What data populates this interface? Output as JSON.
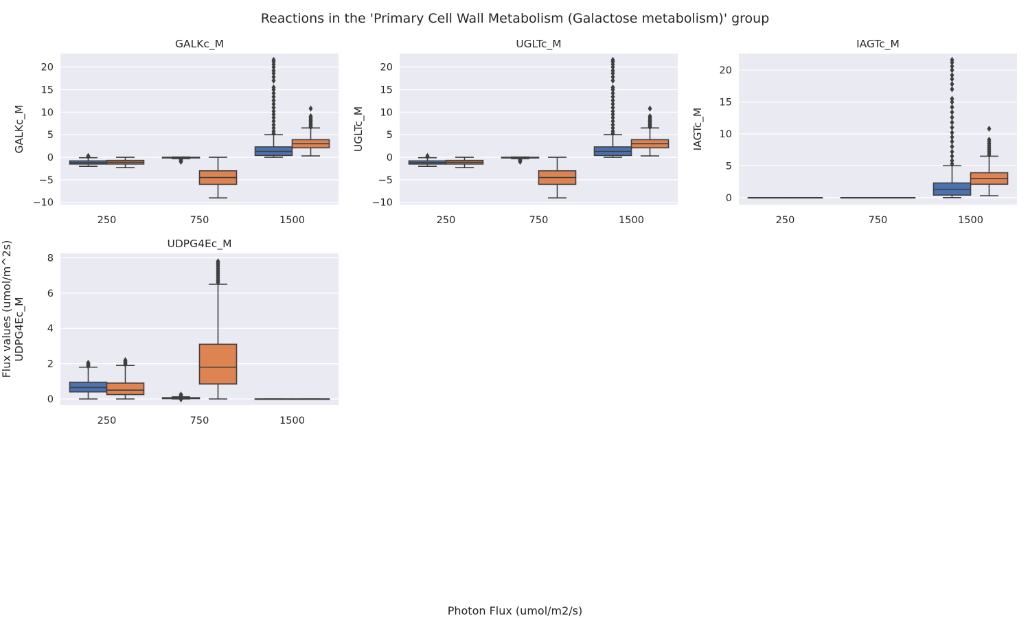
{
  "figure": {
    "suptitle": "Reactions in the 'Primary Cell Wall Metabolism (Galactose metabolism)' group",
    "shared_xlabel": "Photon Flux (umol/m2/s)",
    "shared_ylabel": "Flux values (umol/m^2s)"
  },
  "colors": {
    "plot_background": "#eaeaf2",
    "grid": "#ffffff",
    "series": [
      "#4c72b0",
      "#dd8452"
    ],
    "line": "#3f3f3f"
  },
  "chart_data": [
    {
      "type": "box",
      "title": "GALKc_M",
      "ylabel": "GALKc_M",
      "categories": [
        "250",
        "750",
        "1500"
      ],
      "ylim": [
        -10.5,
        23
      ],
      "yticks": [
        -10,
        -5,
        0,
        5,
        10,
        15,
        20
      ],
      "grid": true,
      "series": [
        {
          "boxes": [
            {
              "whislo": -2.0,
              "q1": -1.5,
              "med": -1.2,
              "q3": -0.8,
              "whishi": -0.1,
              "fliers": [
                0.1,
                0.2,
                0.3
              ]
            },
            {
              "whislo": -0.3,
              "q1": -0.15,
              "med": -0.1,
              "q3": 0.0,
              "whishi": 0.05,
              "fliers": [
                -0.5,
                -0.7,
                -0.9,
                -1.0
              ]
            },
            {
              "whislo": 0.0,
              "q1": 0.4,
              "med": 1.3,
              "q3": 2.3,
              "whishi": 5.0,
              "fliers": [
                5.3,
                5.8,
                6.5,
                7.2,
                8.0,
                8.8,
                9.5,
                10.2,
                11.0,
                11.8,
                12.6,
                13.4,
                14.2,
                15.0,
                15.5,
                17.0,
                17.8,
                18.6,
                19.2,
                20.0,
                20.6,
                21.2,
                21.6
              ]
            }
          ]
        },
        {
          "boxes": [
            {
              "whislo": -2.3,
              "q1": -1.5,
              "med": -1.1,
              "q3": -0.7,
              "whishi": 0.0,
              "fliers": []
            },
            {
              "whislo": -9.0,
              "q1": -6.0,
              "med": -4.5,
              "q3": -3.0,
              "whishi": 0.0,
              "fliers": []
            },
            {
              "whislo": 0.3,
              "q1": 2.1,
              "med": 3.0,
              "q3": 3.9,
              "whishi": 6.5,
              "fliers": [
                6.7,
                7.0,
                7.3,
                7.6,
                7.9,
                8.2,
                8.5,
                8.8,
                9.1,
                10.8
              ]
            }
          ]
        }
      ]
    },
    {
      "type": "box",
      "title": "UGLTc_M",
      "ylabel": "UGLTc_M",
      "categories": [
        "250",
        "750",
        "1500"
      ],
      "ylim": [
        -10.5,
        23
      ],
      "yticks": [
        -10,
        -5,
        0,
        5,
        10,
        15,
        20
      ],
      "grid": true,
      "series": [
        {
          "boxes": [
            {
              "whislo": -2.0,
              "q1": -1.5,
              "med": -1.2,
              "q3": -0.8,
              "whishi": -0.1,
              "fliers": [
                0.1,
                0.2,
                0.3
              ]
            },
            {
              "whislo": -0.3,
              "q1": -0.15,
              "med": -0.1,
              "q3": 0.0,
              "whishi": 0.05,
              "fliers": [
                -0.5,
                -0.7,
                -0.9,
                -1.0
              ]
            },
            {
              "whislo": 0.0,
              "q1": 0.4,
              "med": 1.3,
              "q3": 2.3,
              "whishi": 5.0,
              "fliers": [
                5.3,
                5.8,
                6.5,
                7.2,
                8.0,
                8.8,
                9.5,
                10.2,
                11.0,
                11.8,
                12.6,
                13.4,
                14.2,
                15.0,
                15.5,
                17.0,
                17.8,
                18.6,
                19.2,
                20.0,
                20.6,
                21.2,
                21.6
              ]
            }
          ]
        },
        {
          "boxes": [
            {
              "whislo": -2.3,
              "q1": -1.5,
              "med": -1.1,
              "q3": -0.7,
              "whishi": 0.0,
              "fliers": []
            },
            {
              "whislo": -9.0,
              "q1": -6.0,
              "med": -4.5,
              "q3": -3.0,
              "whishi": 0.0,
              "fliers": []
            },
            {
              "whislo": 0.3,
              "q1": 2.1,
              "med": 3.0,
              "q3": 3.9,
              "whishi": 6.5,
              "fliers": [
                6.7,
                7.0,
                7.3,
                7.6,
                7.9,
                8.2,
                8.5,
                8.8,
                9.1,
                10.8
              ]
            }
          ]
        }
      ]
    },
    {
      "type": "box",
      "title": "IAGTc_M",
      "ylabel": "IAGTc_M",
      "categories": [
        "250",
        "750",
        "1500"
      ],
      "ylim": [
        -1.1,
        22.6
      ],
      "yticks": [
        0,
        5,
        10,
        15,
        20
      ],
      "grid": true,
      "series": [
        {
          "boxes": [
            {
              "whislo": 0.0,
              "q1": 0.0,
              "med": 0.0,
              "q3": 0.0,
              "whishi": 0.0,
              "fliers": []
            },
            {
              "whislo": 0.0,
              "q1": 0.0,
              "med": 0.0,
              "q3": 0.0,
              "whishi": 0.0,
              "fliers": []
            },
            {
              "whislo": 0.0,
              "q1": 0.4,
              "med": 1.3,
              "q3": 2.3,
              "whishi": 5.0,
              "fliers": [
                5.3,
                5.8,
                6.5,
                7.2,
                8.0,
                8.8,
                9.5,
                10.2,
                11.0,
                11.8,
                12.6,
                13.4,
                14.2,
                15.0,
                15.5,
                17.0,
                17.8,
                18.6,
                19.2,
                20.0,
                20.6,
                21.2,
                21.6
              ]
            }
          ]
        },
        {
          "boxes": [
            {
              "whislo": 0.0,
              "q1": 0.0,
              "med": 0.0,
              "q3": 0.0,
              "whishi": 0.0,
              "fliers": []
            },
            {
              "whislo": 0.0,
              "q1": 0.0,
              "med": 0.0,
              "q3": 0.0,
              "whishi": 0.0,
              "fliers": []
            },
            {
              "whislo": 0.3,
              "q1": 2.1,
              "med": 3.0,
              "q3": 3.9,
              "whishi": 6.5,
              "fliers": [
                6.7,
                7.0,
                7.3,
                7.6,
                7.9,
                8.2,
                8.5,
                8.8,
                9.1,
                10.8
              ]
            }
          ]
        }
      ]
    },
    {
      "type": "box",
      "title": "UDPG4Ec_M",
      "ylabel": "UDPG4Ec_M",
      "categories": [
        "250",
        "750",
        "1500"
      ],
      "ylim": [
        -0.35,
        8.25
      ],
      "yticks": [
        0,
        2,
        4,
        6,
        8
      ],
      "grid": true,
      "series": [
        {
          "boxes": [
            {
              "whislo": 0.0,
              "q1": 0.4,
              "med": 0.65,
              "q3": 0.95,
              "whishi": 1.8,
              "fliers": [
                1.85,
                1.9,
                1.95,
                2.0,
                2.05
              ]
            },
            {
              "whislo": 0.0,
              "q1": 0.02,
              "med": 0.04,
              "q3": 0.07,
              "whishi": 0.12,
              "fliers": [
                0.15,
                0.2,
                0.25,
                0.0,
                -0.02
              ]
            },
            {
              "whislo": 0.0,
              "q1": 0.0,
              "med": 0.0,
              "q3": 0.0,
              "whishi": 0.0,
              "fliers": []
            }
          ]
        },
        {
          "boxes": [
            {
              "whislo": 0.0,
              "q1": 0.25,
              "med": 0.5,
              "q3": 0.9,
              "whishi": 1.9,
              "fliers": [
                1.95,
                2.0,
                2.05,
                2.1,
                2.15,
                2.2
              ]
            },
            {
              "whislo": 0.0,
              "q1": 0.85,
              "med": 1.8,
              "q3": 3.1,
              "whishi": 6.5,
              "fliers": [
                6.6,
                6.7,
                6.8,
                6.9,
                7.0,
                7.1,
                7.2,
                7.3,
                7.4,
                7.5,
                7.6,
                7.7,
                7.8
              ]
            },
            {
              "whislo": 0.0,
              "q1": 0.0,
              "med": 0.0,
              "q3": 0.0,
              "whishi": 0.0,
              "fliers": []
            }
          ]
        }
      ]
    }
  ]
}
